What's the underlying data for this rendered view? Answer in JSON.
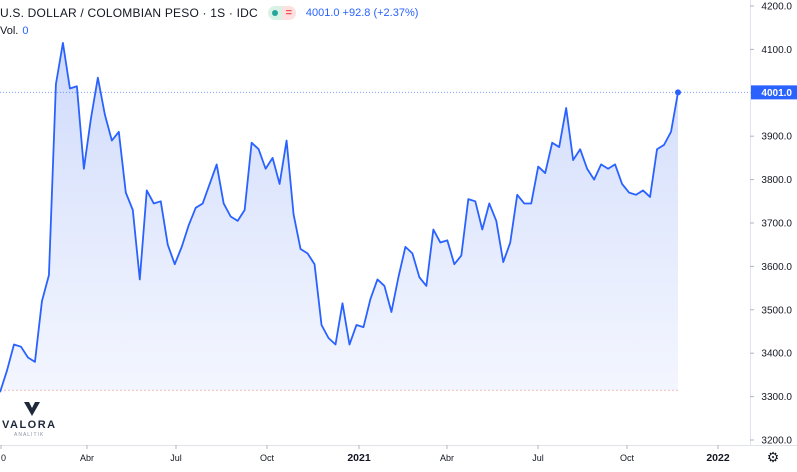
{
  "header": {
    "symbol_title": "U.S. DOLLAR / COLOMBIAN PESO · 1S · IDC",
    "quote": "4001.0  +92.8 (+2.37%)",
    "market_open_icon": "green-dot-icon",
    "compare_icon": "equals-icon"
  },
  "volume": {
    "label": "Vol.",
    "value": "0"
  },
  "logo": {
    "wordmark": "VALORA",
    "subtext": "ANALITIK"
  },
  "settings": {
    "icon": "gear-icon"
  },
  "colors": {
    "line": "#2962ff",
    "fill_top": "#c9d6fb",
    "fill_bottom": "#eef2fe",
    "price_line": "#2962ff",
    "baseline": "#ef9a9a",
    "axis_text": "#131722",
    "axis_bg": "#ffffff",
    "price_label_bg": "#2962ff"
  },
  "chart_data": {
    "type": "area",
    "title": "U.S. DOLLAR / COLOMBIAN PESO · 1S · IDC",
    "xlabel": "",
    "ylabel": "",
    "x_ticks": [
      "0",
      "Abr",
      "Jul",
      "Oct",
      "2021",
      "Abr",
      "Jul",
      "Oct",
      "2022"
    ],
    "y_ticks": [
      "4200.0",
      "4100.0",
      "4000.0",
      "3900.0",
      "3800.0",
      "3700.0",
      "3600.0",
      "3500.0",
      "3400.0",
      "3300.0",
      "3200.0"
    ],
    "ylim": [
      3200,
      4200
    ],
    "last_price_label": "4001.0",
    "last_price": 4001.0,
    "baseline_price": 3315,
    "grid": false,
    "values": [
      3310,
      3360,
      3420,
      3415,
      3390,
      3380,
      3520,
      3580,
      4020,
      4115,
      4010,
      4015,
      3825,
      3940,
      4035,
      3950,
      3890,
      3910,
      3770,
      3730,
      3570,
      3775,
      3745,
      3750,
      3650,
      3605,
      3645,
      3695,
      3735,
      3745,
      3790,
      3835,
      3745,
      3715,
      3705,
      3730,
      3885,
      3870,
      3825,
      3850,
      3790,
      3890,
      3720,
      3640,
      3630,
      3605,
      3465,
      3435,
      3420,
      3515,
      3420,
      3465,
      3460,
      3525,
      3570,
      3555,
      3495,
      3575,
      3645,
      3630,
      3575,
      3555,
      3685,
      3655,
      3660,
      3605,
      3625,
      3755,
      3750,
      3685,
      3745,
      3705,
      3610,
      3655,
      3765,
      3745,
      3745,
      3830,
      3815,
      3885,
      3875,
      3965,
      3845,
      3870,
      3825,
      3800,
      3835,
      3825,
      3835,
      3790,
      3770,
      3765,
      3775,
      3760,
      3870,
      3880,
      3910,
      4001
    ]
  }
}
